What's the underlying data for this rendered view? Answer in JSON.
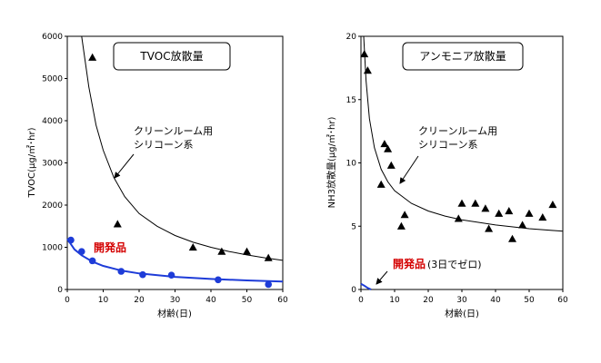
{
  "chart_data": [
    {
      "type": "scatter",
      "title": "TVOC放散量",
      "xlabel": "材齢(日)",
      "ylabel": "TVOC(μg/㎡･hr)",
      "xlim": [
        0,
        60
      ],
      "ylim": [
        0,
        6000
      ],
      "xticks": [
        "0",
        "10",
        "20",
        "30",
        "40",
        "50",
        "60"
      ],
      "yticks": [
        "0",
        "1000",
        "2000",
        "3000",
        "4000",
        "5000",
        "6000"
      ],
      "grid": false,
      "annotation_conventional": [
        "クリーンルーム用",
        "シリコーン系"
      ],
      "annotation_developed": "開発品",
      "annotation_developed_note": "",
      "series": [
        {
          "name": "クリーンルーム用シリコーン系",
          "marker": "triangle",
          "color": "#000000",
          "x": [
            7,
            14,
            35,
            43,
            50,
            56
          ],
          "y": [
            5500,
            1550,
            1000,
            900,
            900,
            750
          ],
          "fit_curve": {
            "x": [
              4,
              6,
              8,
              10,
              13,
              16,
              20,
              25,
              30,
              35,
              40,
              45,
              50,
              55,
              60
            ],
            "y": [
              6000,
              4800,
              3900,
              3300,
              2650,
              2200,
              1800,
              1500,
              1280,
              1120,
              1000,
              900,
              820,
              750,
              690
            ]
          }
        },
        {
          "name": "開発品",
          "marker": "circle",
          "color": "#1e3cd8",
          "x": [
            1,
            4,
            7,
            15,
            21,
            29,
            42,
            56
          ],
          "y": [
            1170,
            900,
            680,
            430,
            350,
            340,
            230,
            120
          ],
          "fit_curve": {
            "x": [
              0,
              2,
              4,
              7,
              10,
              15,
              20,
              30,
              40,
              50,
              60
            ],
            "y": [
              1200,
              950,
              810,
              660,
              560,
              450,
              380,
              300,
              250,
              215,
              190
            ]
          }
        }
      ]
    },
    {
      "type": "scatter",
      "title": "アンモニア放散量",
      "xlabel": "材齢(日)",
      "ylabel": "NH3放散量(μg/㎡･hr)",
      "xlim": [
        0,
        60
      ],
      "ylim": [
        0,
        20
      ],
      "xticks": [
        "0",
        "10",
        "20",
        "30",
        "40",
        "50",
        "60"
      ],
      "yticks": [
        "0",
        "5",
        "10",
        "15",
        "20"
      ],
      "grid": false,
      "annotation_conventional": [
        "クリーンルーム用",
        "シリコーン系"
      ],
      "annotation_developed": "開発品",
      "annotation_developed_note": "(3日でゼロ)",
      "series": [
        {
          "name": "クリーンルーム用シリコーン系",
          "marker": "triangle",
          "color": "#000000",
          "x": [
            1,
            2,
            6,
            7,
            8,
            9,
            12,
            13,
            29,
            30,
            34,
            37,
            38,
            41,
            44,
            45,
            48,
            50,
            54,
            57
          ],
          "y": [
            18.6,
            17.3,
            8.3,
            11.5,
            11.1,
            9.8,
            5.0,
            5.9,
            5.6,
            6.8,
            6.8,
            6.4,
            4.8,
            6.0,
            6.2,
            4.0,
            5.1,
            6.0,
            5.7,
            6.7
          ],
          "fit_curve": {
            "x": [
              0.8,
              1.5,
              2.5,
              4,
              6,
              8,
              10,
              15,
              20,
              25,
              30,
              40,
              50,
              60
            ],
            "y": [
              20,
              16.5,
              13.5,
              11.2,
              9.5,
              8.5,
              7.8,
              6.8,
              6.2,
              5.8,
              5.5,
              5.1,
              4.8,
              4.6
            ]
          }
        },
        {
          "name": "開発品",
          "marker": "none",
          "color": "#1e3cd8",
          "x": [],
          "y": [],
          "fit_curve": {
            "x": [
              0,
              1,
              2,
              3
            ],
            "y": [
              0.45,
              0.3,
              0.12,
              0
            ]
          }
        }
      ]
    }
  ]
}
